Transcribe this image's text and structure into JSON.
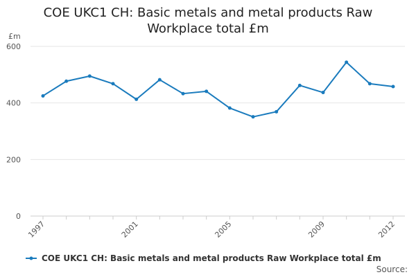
{
  "chart_data": {
    "type": "line",
    "title": "COE UKC1 CH: Basic metals and metal products Raw Workplace total £m",
    "ylabel": "£m",
    "xlabel": "",
    "ylim": [
      0,
      600
    ],
    "yticks": [
      0,
      200,
      400,
      600
    ],
    "x": [
      1997,
      1998,
      1999,
      2000,
      2001,
      2002,
      2003,
      2004,
      2005,
      2006,
      2007,
      2008,
      2009,
      2010,
      2011,
      2012
    ],
    "xtick_labels": [
      "1997",
      "2001",
      "2005",
      "2009",
      "2012"
    ],
    "grid": "horizontal",
    "legend_position": "bottom",
    "series": [
      {
        "name": "COE UKC1 CH: Basic metals and metal products Raw Workplace total £m",
        "color": "#1a7bbd",
        "values": [
          425,
          477,
          495,
          468,
          413,
          482,
          433,
          441,
          382,
          351,
          369,
          462,
          437,
          544,
          468,
          458
        ]
      }
    ]
  },
  "footer": {
    "source_label": "Source:"
  }
}
